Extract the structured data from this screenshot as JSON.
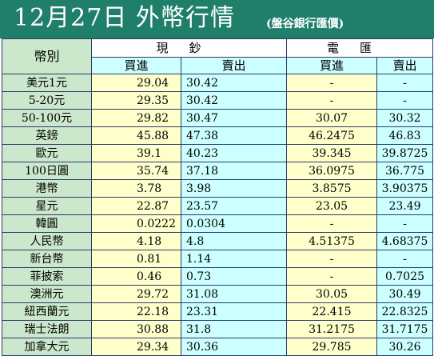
{
  "title": "12月27日 外幣行情",
  "subtitle": "(盤谷銀行匯價)",
  "header": {
    "currency_label": "幣別",
    "cash_group": "現鈔",
    "telegraphic_group": "電匯",
    "buy_label": "買進",
    "sell_label": "賣出"
  },
  "colors": {
    "banner": "#1f7f6b",
    "name_column": "#cce8cc",
    "buy_column": "#ffffcc",
    "sell_column": "#ccffff",
    "grid_line": "#2b3b68"
  },
  "rows": [
    {
      "currency": "美元1元",
      "cash_buy": "29.04",
      "cash_sell": "30.42",
      "tt_buy": "-",
      "tt_sell": "-"
    },
    {
      "currency": "5-20元",
      "cash_buy": "29.35",
      "cash_sell": "30.42",
      "tt_buy": "-",
      "tt_sell": "-"
    },
    {
      "currency": "50-100元",
      "cash_buy": "29.82",
      "cash_sell": "30.47",
      "tt_buy": "30.07",
      "tt_sell": "30.32"
    },
    {
      "currency": "英鎊",
      "cash_buy": "45.88",
      "cash_sell": "47.38",
      "tt_buy": "46.2475",
      "tt_sell": "46.83"
    },
    {
      "currency": "歐元",
      "cash_buy": "39.1",
      "cash_sell": "40.23",
      "tt_buy": "39.345",
      "tt_sell": "39.8725"
    },
    {
      "currency": "100日圓",
      "cash_buy": "35.74",
      "cash_sell": "37.18",
      "tt_buy": "36.0975",
      "tt_sell": "36.775"
    },
    {
      "currency": "港幣",
      "cash_buy": "3.78",
      "cash_sell": "3.98",
      "tt_buy": "3.8575",
      "tt_sell": "3.90375"
    },
    {
      "currency": "星元",
      "cash_buy": "22.87",
      "cash_sell": "23.57",
      "tt_buy": "23.05",
      "tt_sell": "23.49"
    },
    {
      "currency": "韓圓",
      "cash_buy": "0.0222",
      "cash_sell": "0.0304",
      "tt_buy": "-",
      "tt_sell": "-"
    },
    {
      "currency": "人民幣",
      "cash_buy": "4.18",
      "cash_sell": "4.8",
      "tt_buy": "4.51375",
      "tt_sell": "4.68375"
    },
    {
      "currency": "新台幣",
      "cash_buy": "0.81",
      "cash_sell": "1.14",
      "tt_buy": "-",
      "tt_sell": "-"
    },
    {
      "currency": "菲披索",
      "cash_buy": "0.46",
      "cash_sell": "0.73",
      "tt_buy": "-",
      "tt_sell": "0.7025"
    },
    {
      "currency": "澳洲元",
      "cash_buy": "29.72",
      "cash_sell": "31.08",
      "tt_buy": "30.05",
      "tt_sell": "30.49"
    },
    {
      "currency": "紐西蘭元",
      "cash_buy": "22.18",
      "cash_sell": "23.31",
      "tt_buy": "22.415",
      "tt_sell": "22.8325"
    },
    {
      "currency": "瑞士法朗",
      "cash_buy": "30.88",
      "cash_sell": "31.8",
      "tt_buy": "31.2175",
      "tt_sell": "31.7175"
    },
    {
      "currency": "加拿大元",
      "cash_buy": "29.34",
      "cash_sell": "30.36",
      "tt_buy": "29.785",
      "tt_sell": "30.26"
    }
  ]
}
